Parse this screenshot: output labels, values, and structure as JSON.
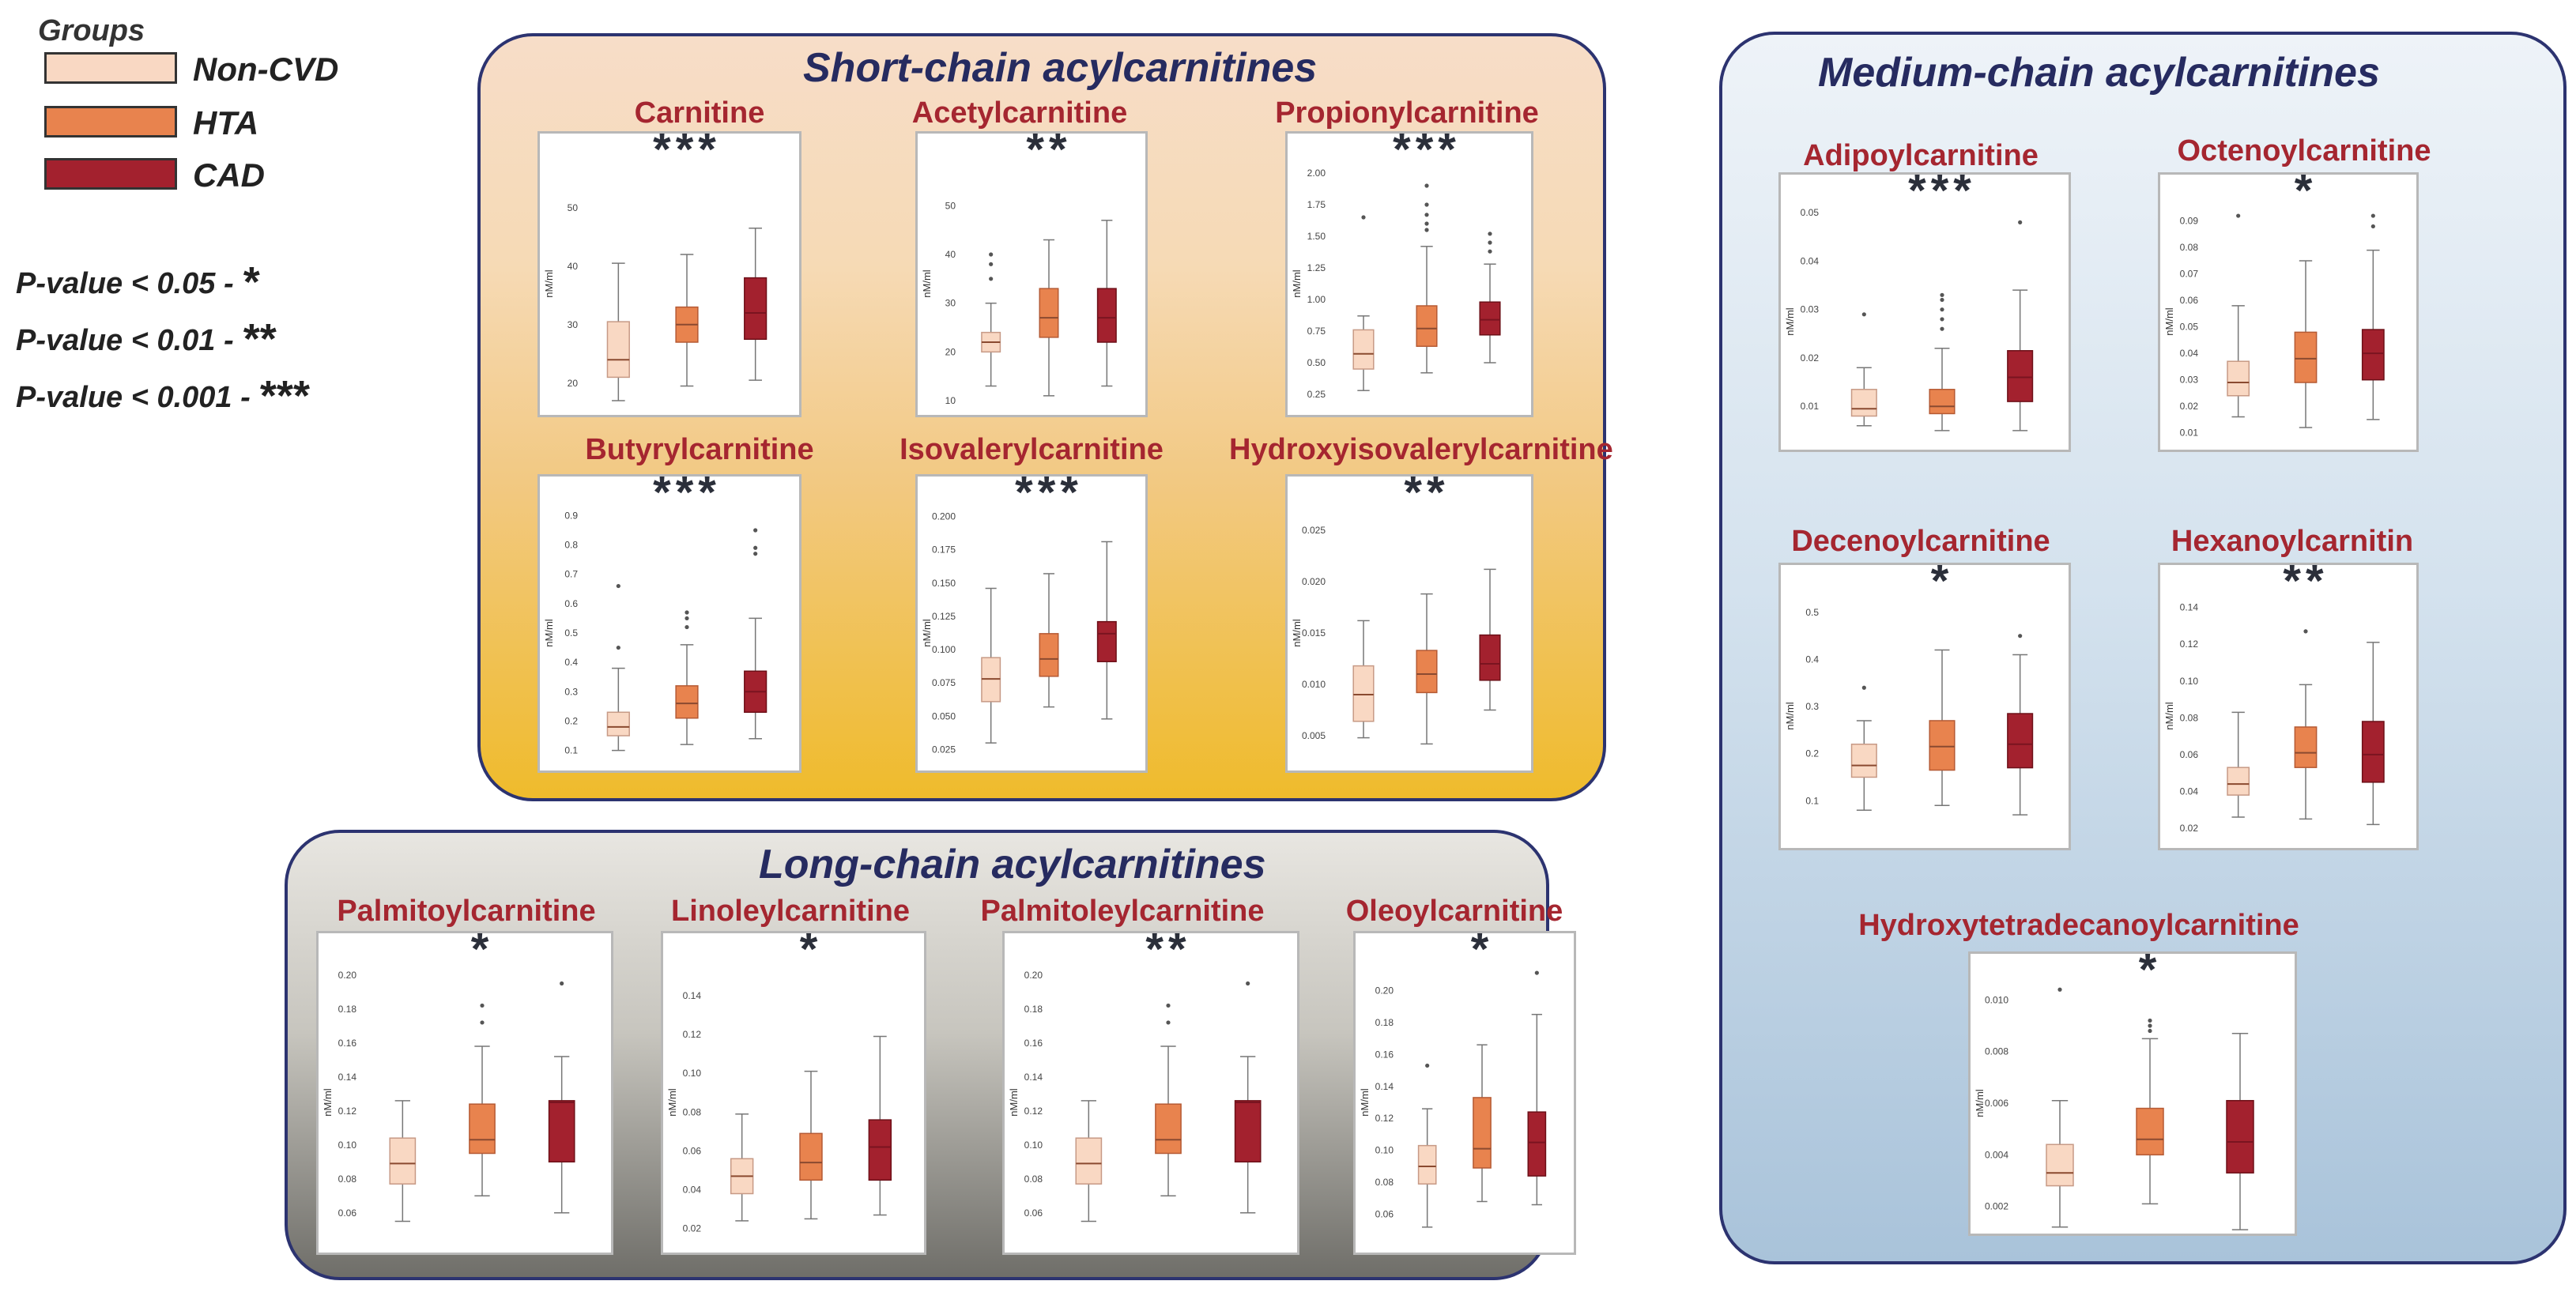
{
  "legend": {
    "title": "Groups",
    "items": [
      {
        "label": "Non-CVD",
        "color": "#f9d8c3"
      },
      {
        "label": "HTA",
        "color": "#e8834e"
      },
      {
        "label": "CAD",
        "color": "#a3212e"
      }
    ],
    "pvalues": [
      {
        "label": "P-value < 0.05 -",
        "stars": "*"
      },
      {
        "label": "P-value < 0.01 -",
        "stars": "**"
      },
      {
        "label": "P-value < 0.001 -",
        "stars": "***"
      }
    ]
  },
  "groups": {
    "short": "Short-chain acylcarnitines",
    "medium": "Medium-chain acylcarnitines",
    "long": "Long-chain acylcarnitines"
  },
  "chart_data": [
    {
      "type": "box",
      "group": "short",
      "title": "Carnitine",
      "ylabel": "nM/ml",
      "ylim": [
        17,
        57
      ],
      "ticks": [
        "20",
        "30",
        "40",
        "50"
      ],
      "significance": "***",
      "series": [
        {
          "name": "Non-CVD",
          "q1": 21,
          "median": 24,
          "q3": 30.5,
          "wmin": 17,
          "wmax": 40.5,
          "outliers": []
        },
        {
          "name": "HTA",
          "q1": 27,
          "median": 30,
          "q3": 33,
          "wmin": 19.5,
          "wmax": 42,
          "outliers": []
        },
        {
          "name": "CAD",
          "q1": 27.5,
          "median": 32,
          "q3": 38,
          "wmin": 20.5,
          "wmax": 46.5,
          "outliers": []
        }
      ]
    },
    {
      "type": "box",
      "group": "short",
      "title": "Acetylcarnitine",
      "ylabel": "nM/ml",
      "ylim": [
        10,
        58
      ],
      "ticks": [
        "10",
        "20",
        "30",
        "40",
        "50"
      ],
      "significance": "**",
      "series": [
        {
          "name": "Non-CVD",
          "q1": 20,
          "median": 22,
          "q3": 24,
          "wmin": 13,
          "wmax": 30,
          "outliers": [
            35,
            38,
            40
          ]
        },
        {
          "name": "HTA",
          "q1": 23,
          "median": 27,
          "q3": 33,
          "wmin": 11,
          "wmax": 43,
          "outliers": []
        },
        {
          "name": "CAD",
          "q1": 22,
          "median": 27,
          "q3": 33,
          "wmin": 13,
          "wmax": 47,
          "outliers": []
        }
      ]
    },
    {
      "type": "box",
      "group": "short",
      "title": "Propionylcarnitine",
      "ylabel": "nM/ml",
      "ylim": [
        0.2,
        2.05
      ],
      "ticks": [
        "0.25",
        "0.50",
        "0.75",
        "1.00",
        "1.25",
        "1.50",
        "1.75",
        "2.00"
      ],
      "significance": "***",
      "series": [
        {
          "name": "Non-CVD",
          "q1": 0.45,
          "median": 0.57,
          "q3": 0.76,
          "wmin": 0.28,
          "wmax": 0.87,
          "outliers": [
            1.65
          ]
        },
        {
          "name": "HTA",
          "q1": 0.63,
          "median": 0.77,
          "q3": 0.95,
          "wmin": 0.42,
          "wmax": 1.42,
          "outliers": [
            1.55,
            1.6,
            1.67,
            1.75,
            1.9
          ]
        },
        {
          "name": "CAD",
          "q1": 0.72,
          "median": 0.84,
          "q3": 0.98,
          "wmin": 0.5,
          "wmax": 1.28,
          "outliers": [
            1.38,
            1.45,
            1.52
          ]
        }
      ]
    },
    {
      "type": "box",
      "group": "short",
      "title": "Butyrylcarnitine",
      "ylabel": "nM/ml",
      "ylim": [
        0.08,
        0.92
      ],
      "ticks": [
        "0.1",
        "0.2",
        "0.3",
        "0.4",
        "0.5",
        "0.6",
        "0.7",
        "0.8",
        "0.9"
      ],
      "significance": "***",
      "series": [
        {
          "name": "Non-CVD",
          "q1": 0.15,
          "median": 0.18,
          "q3": 0.23,
          "wmin": 0.1,
          "wmax": 0.38,
          "outliers": [
            0.45,
            0.66
          ]
        },
        {
          "name": "HTA",
          "q1": 0.21,
          "median": 0.26,
          "q3": 0.32,
          "wmin": 0.12,
          "wmax": 0.46,
          "outliers": [
            0.52,
            0.55,
            0.57
          ]
        },
        {
          "name": "CAD",
          "q1": 0.23,
          "median": 0.3,
          "q3": 0.37,
          "wmin": 0.14,
          "wmax": 0.55,
          "outliers": [
            0.77,
            0.79,
            0.85
          ]
        }
      ]
    },
    {
      "type": "box",
      "group": "short",
      "title": "Isovalerylcarnitine",
      "ylabel": "nM/ml",
      "ylim": [
        0.02,
        0.205
      ],
      "ticks": [
        "0.025",
        "0.050",
        "0.075",
        "0.100",
        "0.125",
        "0.150",
        "0.175",
        "0.200"
      ],
      "significance": "***",
      "series": [
        {
          "name": "Non-CVD",
          "q1": 0.061,
          "median": 0.078,
          "q3": 0.094,
          "wmin": 0.03,
          "wmax": 0.146,
          "outliers": []
        },
        {
          "name": "HTA",
          "q1": 0.08,
          "median": 0.093,
          "q3": 0.112,
          "wmin": 0.057,
          "wmax": 0.157,
          "outliers": []
        },
        {
          "name": "CAD",
          "q1": 0.091,
          "median": 0.112,
          "q3": 0.121,
          "wmin": 0.048,
          "wmax": 0.181,
          "outliers": []
        }
      ]
    },
    {
      "type": "box",
      "group": "short",
      "title": "Hydroxyisovalerylcarnitine",
      "ylabel": "nM/ml",
      "ylim": [
        0.003,
        0.027
      ],
      "ticks": [
        "0.005",
        "0.010",
        "0.015",
        "0.020",
        "0.025"
      ],
      "significance": "**",
      "series": [
        {
          "name": "Non-CVD",
          "q1": 0.0064,
          "median": 0.009,
          "q3": 0.0118,
          "wmin": 0.0048,
          "wmax": 0.0162,
          "outliers": []
        },
        {
          "name": "HTA",
          "q1": 0.0092,
          "median": 0.011,
          "q3": 0.0133,
          "wmin": 0.0042,
          "wmax": 0.0188,
          "outliers": []
        },
        {
          "name": "CAD",
          "q1": 0.0104,
          "median": 0.012,
          "q3": 0.0148,
          "wmin": 0.0075,
          "wmax": 0.0212,
          "outliers": []
        }
      ]
    },
    {
      "type": "box",
      "group": "medium",
      "title": "Adipoylcarnitine",
      "ylabel": "nM/ml",
      "ylim": [
        0.004,
        0.051
      ],
      "ticks": [
        "0.01",
        "0.02",
        "0.03",
        "0.04",
        "0.05"
      ],
      "significance": "***",
      "series": [
        {
          "name": "Non-CVD",
          "q1": 0.008,
          "median": 0.0095,
          "q3": 0.0135,
          "wmin": 0.006,
          "wmax": 0.018,
          "outliers": [
            0.029
          ]
        },
        {
          "name": "HTA",
          "q1": 0.0085,
          "median": 0.01,
          "q3": 0.0135,
          "wmin": 0.005,
          "wmax": 0.022,
          "outliers": [
            0.026,
            0.028,
            0.03,
            0.032,
            0.033
          ]
        },
        {
          "name": "CAD",
          "q1": 0.011,
          "median": 0.016,
          "q3": 0.0215,
          "wmin": 0.005,
          "wmax": 0.034,
          "outliers": [
            0.048
          ]
        }
      ]
    },
    {
      "type": "box",
      "group": "medium",
      "title": "Octenoylcarnitine",
      "ylabel": "nM/ml",
      "ylim": [
        0.009,
        0.095
      ],
      "ticks": [
        "0.01",
        "0.02",
        "0.03",
        "0.04",
        "0.05",
        "0.06",
        "0.07",
        "0.08",
        "0.09"
      ],
      "significance": "*",
      "series": [
        {
          "name": "Non-CVD",
          "q1": 0.024,
          "median": 0.029,
          "q3": 0.037,
          "wmin": 0.016,
          "wmax": 0.058,
          "outliers": [
            0.092
          ]
        },
        {
          "name": "HTA",
          "q1": 0.029,
          "median": 0.038,
          "q3": 0.048,
          "wmin": 0.012,
          "wmax": 0.075,
          "outliers": []
        },
        {
          "name": "CAD",
          "q1": 0.03,
          "median": 0.04,
          "q3": 0.049,
          "wmin": 0.015,
          "wmax": 0.079,
          "outliers": [
            0.088,
            0.092
          ]
        }
      ]
    },
    {
      "type": "box",
      "group": "medium",
      "title": "Decenoylcarnitine",
      "ylabel": "nM/ml",
      "ylim": [
        0.03,
        0.53
      ],
      "ticks": [
        "0.1",
        "0.2",
        "0.3",
        "0.4",
        "0.5"
      ],
      "significance": "*",
      "series": [
        {
          "name": "Non-CVD",
          "q1": 0.15,
          "median": 0.175,
          "q3": 0.22,
          "wmin": 0.08,
          "wmax": 0.27,
          "outliers": [
            0.34
          ]
        },
        {
          "name": "HTA",
          "q1": 0.165,
          "median": 0.215,
          "q3": 0.27,
          "wmin": 0.09,
          "wmax": 0.42,
          "outliers": []
        },
        {
          "name": "CAD",
          "q1": 0.17,
          "median": 0.22,
          "q3": 0.285,
          "wmin": 0.07,
          "wmax": 0.41,
          "outliers": [
            0.45
          ]
        }
      ]
    },
    {
      "type": "box",
      "group": "medium",
      "title": "Hexanoylcarnitin",
      "ylabel": "nM/ml",
      "ylim": [
        0.017,
        0.145
      ],
      "ticks": [
        "0.02",
        "0.04",
        "0.06",
        "0.08",
        "0.10",
        "0.12",
        "0.14"
      ],
      "significance": "**",
      "series": [
        {
          "name": "Non-CVD",
          "q1": 0.038,
          "median": 0.044,
          "q3": 0.053,
          "wmin": 0.026,
          "wmax": 0.083,
          "outliers": []
        },
        {
          "name": "HTA",
          "q1": 0.053,
          "median": 0.061,
          "q3": 0.075,
          "wmin": 0.025,
          "wmax": 0.098,
          "outliers": [
            0.127
          ]
        },
        {
          "name": "CAD",
          "q1": 0.045,
          "median": 0.06,
          "q3": 0.078,
          "wmin": 0.022,
          "wmax": 0.121,
          "outliers": []
        }
      ]
    },
    {
      "type": "box",
      "group": "medium",
      "title": "Hydroxytetradecanoylcarnitine",
      "ylabel": "nM/ml",
      "ylim": [
        0.0015,
        0.0105
      ],
      "ticks": [
        "0.002",
        "0.004",
        "0.006",
        "0.008",
        "0.010"
      ],
      "significance": "*",
      "series": [
        {
          "name": "Non-CVD",
          "q1": 0.0028,
          "median": 0.0033,
          "q3": 0.0044,
          "wmin": 0.0012,
          "wmax": 0.0061,
          "outliers": [
            0.0104
          ]
        },
        {
          "name": "HTA",
          "q1": 0.004,
          "median": 0.0046,
          "q3": 0.0058,
          "wmin": 0.0021,
          "wmax": 0.0085,
          "outliers": [
            0.0088,
            0.009,
            0.0092
          ]
        },
        {
          "name": "CAD",
          "q1": 0.0033,
          "median": 0.0045,
          "q3": 0.0061,
          "wmin": 0.0011,
          "wmax": 0.0087,
          "outliers": []
        }
      ]
    },
    {
      "type": "box",
      "group": "long",
      "title": "Palmitoylcarnitine",
      "ylabel": "nM/ml",
      "ylim": [
        0.045,
        0.205
      ],
      "ticks": [
        "0.06",
        "0.08",
        "0.10",
        "0.12",
        "0.14",
        "0.16",
        "0.18",
        "0.20"
      ],
      "significance": "*",
      "series": [
        {
          "name": "Non-CVD",
          "q1": 0.077,
          "median": 0.089,
          "q3": 0.104,
          "wmin": 0.055,
          "wmax": 0.126,
          "outliers": []
        },
        {
          "name": "HTA",
          "q1": 0.095,
          "median": 0.103,
          "q3": 0.124,
          "wmin": 0.07,
          "wmax": 0.158,
          "outliers": [
            0.172,
            0.182
          ]
        },
        {
          "name": "CAD",
          "q1": 0.09,
          "median": 0.125,
          "q3": 0.126,
          "wmin": 0.06,
          "wmax": 0.152,
          "outliers": [
            0.195
          ]
        }
      ]
    },
    {
      "type": "box",
      "group": "long",
      "title": "Linoleylcarnitine",
      "ylabel": "nM/ml",
      "ylim": [
        0.015,
        0.155
      ],
      "ticks": [
        "0.02",
        "0.04",
        "0.06",
        "0.08",
        "0.10",
        "0.12",
        "0.14"
      ],
      "significance": "*",
      "series": [
        {
          "name": "Non-CVD",
          "q1": 0.038,
          "median": 0.047,
          "q3": 0.056,
          "wmin": 0.024,
          "wmax": 0.079,
          "outliers": []
        },
        {
          "name": "HTA",
          "q1": 0.045,
          "median": 0.054,
          "q3": 0.069,
          "wmin": 0.025,
          "wmax": 0.101,
          "outliers": []
        },
        {
          "name": "CAD",
          "q1": 0.045,
          "median": 0.062,
          "q3": 0.076,
          "wmin": 0.027,
          "wmax": 0.119,
          "outliers": []
        }
      ]
    },
    {
      "type": "box",
      "group": "long",
      "title": "Palmitoleylcarnitine",
      "ylabel": "nM/ml",
      "ylim": [
        0.045,
        0.205
      ],
      "ticks": [
        "0.06",
        "0.08",
        "0.10",
        "0.12",
        "0.14",
        "0.16",
        "0.18",
        "0.20"
      ],
      "significance": "**",
      "series": [
        {
          "name": "Non-CVD",
          "q1": 0.077,
          "median": 0.089,
          "q3": 0.104,
          "wmin": 0.055,
          "wmax": 0.126,
          "outliers": []
        },
        {
          "name": "HTA",
          "q1": 0.095,
          "median": 0.103,
          "q3": 0.124,
          "wmin": 0.07,
          "wmax": 0.158,
          "outliers": [
            0.172,
            0.182
          ]
        },
        {
          "name": "CAD",
          "q1": 0.09,
          "median": 0.125,
          "q3": 0.126,
          "wmin": 0.06,
          "wmax": 0.152,
          "outliers": [
            0.195
          ]
        }
      ]
    },
    {
      "type": "box",
      "group": "long",
      "title": "Oleoylcarnitine",
      "ylabel": "nM/ml",
      "ylim": [
        0.045,
        0.215
      ],
      "ticks": [
        "0.06",
        "0.08",
        "0.10",
        "0.12",
        "0.14",
        "0.16",
        "0.18",
        "0.20"
      ],
      "significance": "*",
      "series": [
        {
          "name": "Non-CVD",
          "q1": 0.079,
          "median": 0.09,
          "q3": 0.103,
          "wmin": 0.052,
          "wmax": 0.126,
          "outliers": [
            0.153
          ]
        },
        {
          "name": "HTA",
          "q1": 0.089,
          "median": 0.101,
          "q3": 0.133,
          "wmin": 0.068,
          "wmax": 0.166,
          "outliers": []
        },
        {
          "name": "CAD",
          "q1": 0.084,
          "median": 0.105,
          "q3": 0.124,
          "wmin": 0.066,
          "wmax": 0.185,
          "outliers": [
            0.211
          ]
        }
      ]
    }
  ]
}
